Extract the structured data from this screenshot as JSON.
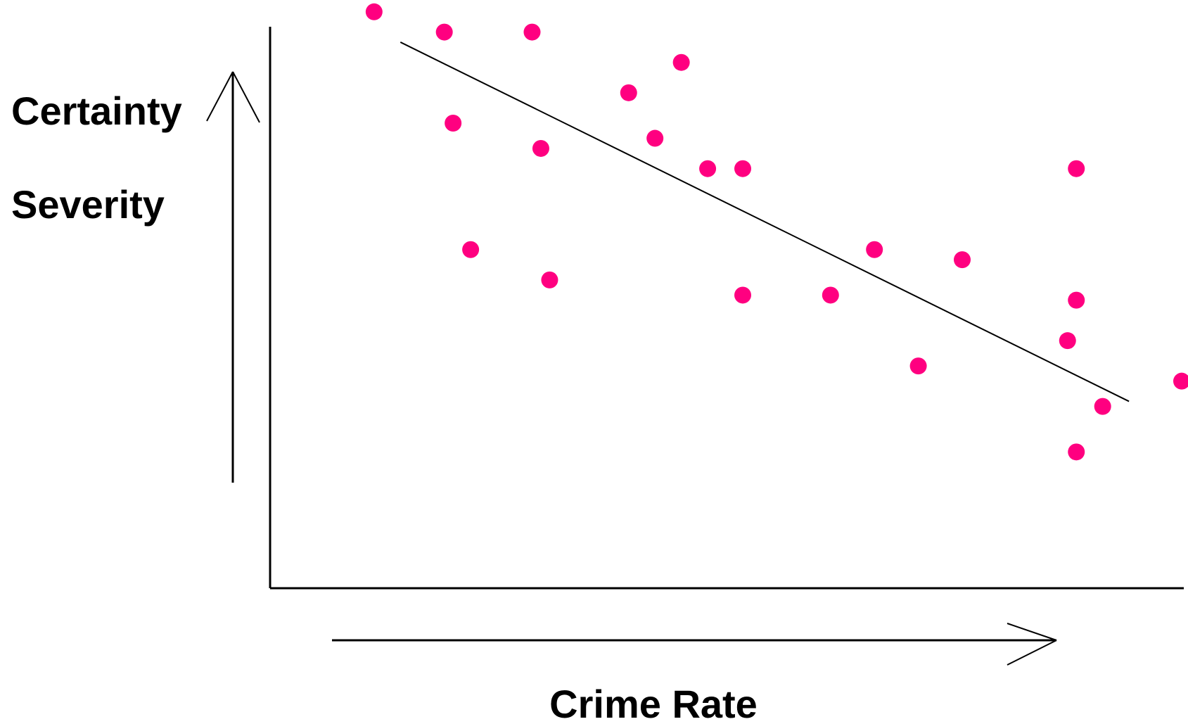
{
  "chart_data": {
    "type": "scatter",
    "title": "",
    "xlabel": "Crime Rate",
    "ylabels": [
      "Certainty",
      "Severity"
    ],
    "xlim": [
      0,
      100
    ],
    "ylim": [
      0,
      100
    ],
    "grid": false,
    "legend": "none",
    "point_color": "#FF0080",
    "line_color": "#000000",
    "axis_color": "#000000",
    "points": [
      {
        "x": 8,
        "y": 101
      },
      {
        "x": 16,
        "y": 97
      },
      {
        "x": 26,
        "y": 97
      },
      {
        "x": 43,
        "y": 91
      },
      {
        "x": 37,
        "y": 85
      },
      {
        "x": 17,
        "y": 79
      },
      {
        "x": 40,
        "y": 76
      },
      {
        "x": 27,
        "y": 74
      },
      {
        "x": 46,
        "y": 70
      },
      {
        "x": 50,
        "y": 70
      },
      {
        "x": 88,
        "y": 70
      },
      {
        "x": 19,
        "y": 54
      },
      {
        "x": 65,
        "y": 54
      },
      {
        "x": 75,
        "y": 52
      },
      {
        "x": 28,
        "y": 48
      },
      {
        "x": 50,
        "y": 45
      },
      {
        "x": 60,
        "y": 45
      },
      {
        "x": 88,
        "y": 44
      },
      {
        "x": 87,
        "y": 36
      },
      {
        "x": 70,
        "y": 31
      },
      {
        "x": 100,
        "y": 28
      },
      {
        "x": 91,
        "y": 23
      },
      {
        "x": 88,
        "y": 14
      }
    ],
    "trend_line": {
      "start": {
        "x": 11,
        "y": 95
      },
      "end": {
        "x": 94,
        "y": 24
      }
    }
  }
}
